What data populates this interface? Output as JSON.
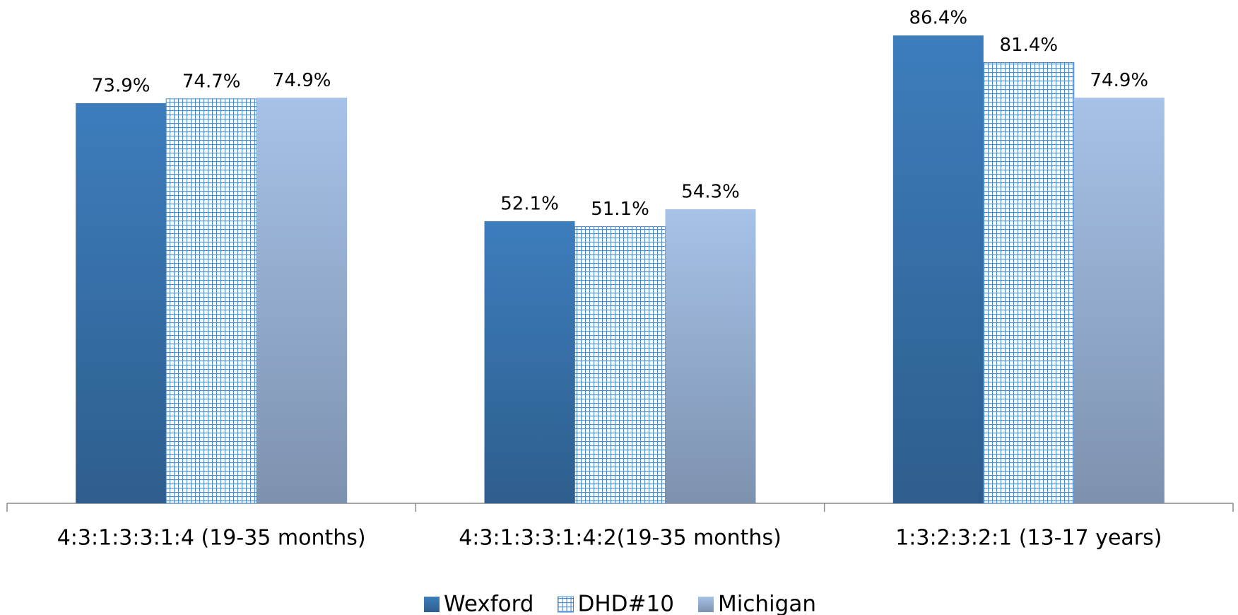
{
  "chart_data": {
    "type": "bar",
    "categories": [
      "4:3:1:3:3:1:4 (19-35 months)",
      "4:3:1:3:3:1:4:2(19-35 months)",
      "1:3:2:3:2:1 (13-17 years)"
    ],
    "series": [
      {
        "name": "Wexford",
        "color": "#3d7dbc",
        "values": [
          73.9,
          52.1,
          86.4
        ],
        "value_labels": [
          "73.9%",
          "52.1%",
          "86.4%"
        ]
      },
      {
        "name": "DHD#10",
        "color": "#4a8ad0",
        "pattern": "grid",
        "values": [
          74.7,
          51.1,
          81.4
        ],
        "value_labels": [
          "74.7%",
          "51.1%",
          "81.4%"
        ]
      },
      {
        "name": "Michigan",
        "color": "#a6c2e8",
        "values": [
          74.9,
          54.3,
          74.9
        ],
        "value_labels": [
          "74.9%",
          "54.3%",
          "74.9%"
        ]
      }
    ],
    "legend": "bottom"
  }
}
